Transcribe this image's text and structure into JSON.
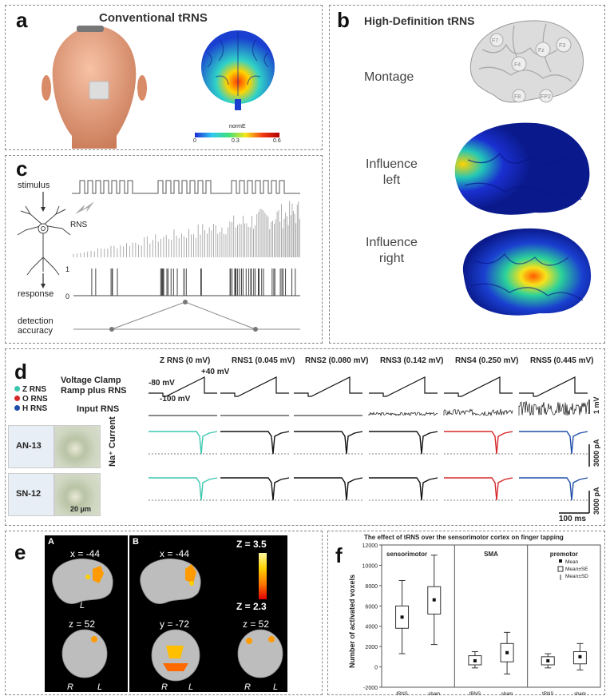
{
  "panel_a": {
    "label": "a",
    "title": "Conventional tRNS",
    "colorbar_title": "normE",
    "colorbar_ticks": [
      "0",
      "0.3",
      "0.6"
    ]
  },
  "panel_b": {
    "label": "b",
    "title": "High-Definition tRNS",
    "rows": [
      "Montage",
      "Influence\nleft",
      "Influence\nright"
    ],
    "electrodes": [
      "F7",
      "Fz",
      "F4",
      "F8",
      "FP2",
      "F3"
    ]
  },
  "panel_c": {
    "label": "c",
    "stimulus": "stimulus",
    "rns": "RNS",
    "response": "response",
    "detection": "detection\naccuracy",
    "y1": "1",
    "y0": "0"
  },
  "panel_d": {
    "label": "d",
    "legend": [
      "Z RNS",
      "O RNS",
      "H RNS"
    ],
    "legend_colors": [
      "#3cc7b0",
      "#d62828",
      "#1f4ea8"
    ],
    "col_headers": [
      "Z RNS (0 mV)",
      "RNS1 (0.045 mV)",
      "RNS2 (0.080 mV)",
      "RNS3 (0.142 mV)",
      "RNS4 (0.250 mV)",
      "RNS5 (0.445 mV)"
    ],
    "voltage_clamp": "Voltage Clamp\nRamp plus RNS",
    "input_rns": "Input RNS",
    "v_plus40": "+40 mV",
    "v_minus80": "-80 mV",
    "v_minus100": "-100 mV",
    "cells": [
      "AN-13",
      "SN-12"
    ],
    "ylabel": "Na⁺ Current",
    "scale_mv": "1 mV",
    "scale_pa1": "3000 pA",
    "scale_pa2": "3000 pA",
    "scale_ms": "100 ms",
    "scale_um": "20 μm"
  },
  "panel_e": {
    "label": "e",
    "sub_a": "A",
    "sub_b": "B",
    "coords": [
      "x = -44",
      "x = -44",
      "z = 52",
      "y = -72",
      "z = 52"
    ],
    "z_hi": "Z = 3.5",
    "z_lo": "Z = 2.3",
    "lr": [
      "L",
      "R",
      "L",
      "R",
      "L",
      "R",
      "L"
    ]
  },
  "panel_f": {
    "label": "f",
    "chart_data": {
      "type": "box",
      "title": "The effect of tRNS over the sensorimotor cortex on finger tapping",
      "ylabel": "Number of activated voxels",
      "groups": [
        "sensorimotor",
        "SMA",
        "premotor"
      ],
      "categories": [
        "tRNS",
        "sham",
        "tRNS",
        "sham",
        "tRNS",
        "sham"
      ],
      "ylim": [
        -2000,
        12000
      ],
      "yticks": [
        -2000,
        0,
        2000,
        4000,
        6000,
        8000,
        10000,
        12000
      ],
      "legend": [
        "Mean",
        "Mean±SE",
        "Mean±SD"
      ],
      "series": [
        {
          "mean": 4900,
          "se_low": 3800,
          "se_high": 6000,
          "sd_low": 1300,
          "sd_high": 8500
        },
        {
          "mean": 6600,
          "se_low": 5200,
          "se_high": 7900,
          "sd_low": 2200,
          "sd_high": 11000
        },
        {
          "mean": 600,
          "se_low": 200,
          "se_high": 1100,
          "sd_low": -100,
          "sd_high": 1500
        },
        {
          "mean": 1400,
          "se_low": 500,
          "se_high": 2300,
          "sd_low": -700,
          "sd_high": 3400
        },
        {
          "mean": 600,
          "se_low": 200,
          "se_high": 1000,
          "sd_low": -100,
          "sd_high": 1300
        },
        {
          "mean": 1000,
          "se_low": 300,
          "se_high": 1500,
          "sd_low": -300,
          "sd_high": 2300
        }
      ]
    }
  }
}
